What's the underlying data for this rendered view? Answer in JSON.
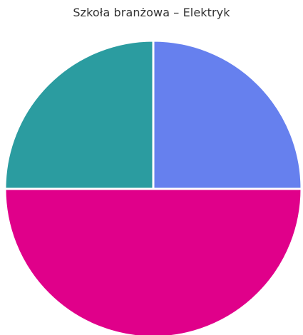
{
  "chart_data": {
    "type": "pie",
    "title": "Szkoła branżowa – Elektryk",
    "start": "top",
    "direction": "clockwise",
    "slices": [
      {
        "value": 25,
        "color": "#6680EE"
      },
      {
        "value": 50,
        "color": "#E0008A"
      },
      {
        "value": 25,
        "color": "#2B9CA0"
      }
    ],
    "legend": false
  }
}
